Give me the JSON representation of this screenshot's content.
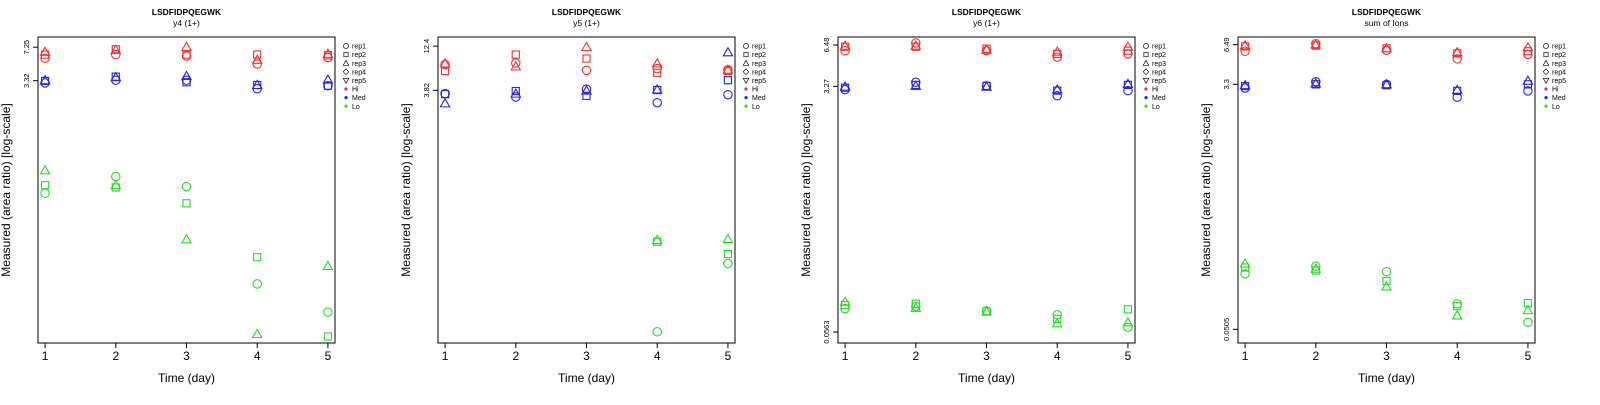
{
  "colors": {
    "Hi": "#ff2a2a",
    "Med": "#2424f0",
    "Lo": "#22dd22",
    "axis": "#000000"
  },
  "legend": {
    "entries": [
      {
        "label": "rep1",
        "shape": "circle"
      },
      {
        "label": "rep2",
        "shape": "square"
      },
      {
        "label": "rep3",
        "shape": "triangle"
      },
      {
        "label": "rep4",
        "shape": "diamond"
      },
      {
        "label": "rep5",
        "shape": "triangle-down"
      },
      {
        "label": "Hi",
        "shape": "dot",
        "color": "Hi"
      },
      {
        "label": "Med",
        "shape": "dot",
        "color": "Med"
      },
      {
        "label": "Lo",
        "shape": "dot",
        "color": "Lo"
      }
    ]
  },
  "chart_data": [
    {
      "type": "scatter",
      "title": "LSDFIDPQEGWK",
      "subtitle": "y4 (1+)",
      "xlabel": "Time (day)",
      "ylabel": "Measured (area ratio) [log-scale]",
      "log_y": true,
      "x_ticks": [
        1,
        2,
        3,
        4,
        5
      ],
      "y_ticks": [
        {
          "value": 7.25,
          "label": "7.25"
        },
        {
          "value": 3.32,
          "label": "3.32"
        }
      ],
      "xlim": [
        0.9,
        5.1
      ],
      "ylim": [
        0.0073,
        9.2
      ],
      "series": [
        {
          "group": "Hi",
          "rep": "rep1",
          "x": [
            1,
            2,
            3,
            4,
            5
          ],
          "y": [
            5.6,
            6.1,
            5.9,
            4.9,
            5.7
          ]
        },
        {
          "group": "Hi",
          "rep": "rep2",
          "x": [
            1,
            2,
            3,
            4,
            5
          ],
          "y": [
            6.1,
            6.9,
            6.1,
            6.1,
            6.0
          ]
        },
        {
          "group": "Hi",
          "rep": "rep3",
          "x": [
            1,
            2,
            3,
            4,
            5
          ],
          "y": [
            6.5,
            6.8,
            7.3,
            5.4,
            6.2
          ]
        },
        {
          "group": "Med",
          "rep": "rep1",
          "x": [
            1,
            2,
            3,
            4,
            5
          ],
          "y": [
            3.15,
            3.35,
            3.35,
            2.75,
            2.95
          ]
        },
        {
          "group": "Med",
          "rep": "rep2",
          "x": [
            1,
            2,
            3,
            4,
            5
          ],
          "y": [
            3.3,
            3.65,
            3.2,
            3.0,
            2.95
          ]
        },
        {
          "group": "Med",
          "rep": "rep3",
          "x": [
            1,
            2,
            3,
            4,
            5
          ],
          "y": [
            3.35,
            3.6,
            3.7,
            3.0,
            3.4
          ]
        },
        {
          "group": "Lo",
          "rep": "rep1",
          "x": [
            1,
            2,
            3,
            4,
            5
          ],
          "y": [
            0.24,
            0.355,
            0.28,
            0.029,
            0.015
          ]
        },
        {
          "group": "Lo",
          "rep": "rep2",
          "x": [
            1,
            2,
            3,
            4,
            5
          ],
          "y": [
            0.29,
            0.275,
            0.19,
            0.054,
            0.0085
          ]
        },
        {
          "group": "Lo",
          "rep": "rep3",
          "x": [
            1,
            2,
            3,
            4,
            5
          ],
          "y": [
            0.41,
            0.29,
            0.082,
            0.009,
            0.044
          ]
        }
      ]
    },
    {
      "type": "scatter",
      "title": "LSDFIDPQEGWK",
      "subtitle": "y5 (1+)",
      "xlabel": "Time (day)",
      "ylabel": "Measured (area ratio) [log-scale]",
      "log_y": true,
      "x_ticks": [
        1,
        2,
        3,
        4,
        5
      ],
      "y_ticks": [
        {
          "value": 12.4,
          "label": "12.4"
        },
        {
          "value": 3.82,
          "label": "3.82"
        }
      ],
      "xlim": [
        0.9,
        5.1
      ],
      "ylim": [
        0.0046,
        15.8
      ],
      "series": [
        {
          "group": "Hi",
          "rep": "rep1",
          "x": [
            1,
            2,
            3,
            4,
            5
          ],
          "y": [
            7.6,
            7.9,
            6.5,
            6.8,
            6.6
          ]
        },
        {
          "group": "Hi",
          "rep": "rep2",
          "x": [
            1,
            2,
            3,
            4,
            5
          ],
          "y": [
            6.4,
            9.9,
            8.9,
            6.1,
            6.4
          ]
        },
        {
          "group": "Hi",
          "rep": "rep3",
          "x": [
            1,
            2,
            3,
            4,
            5
          ],
          "y": [
            7.8,
            7.2,
            12.1,
            7.8,
            6.6
          ]
        },
        {
          "group": "Med",
          "rep": "rep1",
          "x": [
            1,
            2,
            3,
            4,
            5
          ],
          "y": [
            3.5,
            3.2,
            3.95,
            2.75,
            3.4
          ]
        },
        {
          "group": "Med",
          "rep": "rep2",
          "x": [
            1,
            2,
            3,
            4,
            5
          ],
          "y": [
            3.45,
            3.75,
            3.3,
            3.85,
            5.0
          ]
        },
        {
          "group": "Med",
          "rep": "rep3",
          "x": [
            1,
            2,
            3,
            4,
            5
          ],
          "y": [
            2.7,
            3.5,
            3.8,
            3.9,
            10.5
          ]
        },
        {
          "group": "Lo",
          "rep": "rep1",
          "x": [
            1,
            2,
            3,
            4,
            5
          ],
          "y": [
            null,
            null,
            null,
            0.0062,
            0.038
          ]
        },
        {
          "group": "Lo",
          "rep": "rep2",
          "x": [
            1,
            2,
            3,
            4,
            5
          ],
          "y": [
            null,
            null,
            null,
            0.068,
            0.049
          ]
        },
        {
          "group": "Lo",
          "rep": "rep3",
          "x": [
            1,
            2,
            3,
            4,
            5
          ],
          "y": [
            null,
            null,
            null,
            0.071,
            0.073
          ]
        }
      ]
    },
    {
      "type": "scatter",
      "title": "LSDFIDPQEGWK",
      "subtitle": "y6 (1+)",
      "xlabel": "Time (day)",
      "ylabel": "Measured (area ratio) [log-scale]",
      "log_y": true,
      "x_ticks": [
        1,
        2,
        3,
        4,
        5
      ],
      "y_ticks": [
        {
          "value": 6.48,
          "label": "6.48"
        },
        {
          "value": 3.27,
          "label": "3.27"
        },
        {
          "value": 0.0563,
          "label": "0.0563"
        }
      ],
      "xlim": [
        0.9,
        5.1
      ],
      "ylim": [
        0.047,
        7.4
      ],
      "series": [
        {
          "group": "Hi",
          "rep": "rep1",
          "x": [
            1,
            2,
            3,
            4,
            5
          ],
          "y": [
            5.9,
            6.7,
            5.9,
            5.3,
            5.6
          ]
        },
        {
          "group": "Hi",
          "rep": "rep2",
          "x": [
            1,
            2,
            3,
            4,
            5
          ],
          "y": [
            6.3,
            6.3,
            6.1,
            5.6,
            5.9
          ]
        },
        {
          "group": "Hi",
          "rep": "rep3",
          "x": [
            1,
            2,
            3,
            4,
            5
          ],
          "y": [
            6.4,
            6.4,
            6.0,
            5.8,
            6.3
          ]
        },
        {
          "group": "Med",
          "rep": "rep1",
          "x": [
            1,
            2,
            3,
            4,
            5
          ],
          "y": [
            3.1,
            3.5,
            3.3,
            2.8,
            3.05
          ]
        },
        {
          "group": "Med",
          "rep": "rep2",
          "x": [
            1,
            2,
            3,
            4,
            5
          ],
          "y": [
            3.2,
            3.35,
            3.3,
            3.05,
            3.35
          ]
        },
        {
          "group": "Med",
          "rep": "rep3",
          "x": [
            1,
            2,
            3,
            4,
            5
          ],
          "y": [
            3.25,
            3.3,
            3.25,
            3.1,
            3.4
          ]
        },
        {
          "group": "Lo",
          "rep": "rep1",
          "x": [
            1,
            2,
            3,
            4,
            5
          ],
          "y": [
            0.083,
            0.086,
            0.08,
            0.075,
            0.061
          ]
        },
        {
          "group": "Lo",
          "rep": "rep2",
          "x": [
            1,
            2,
            3,
            4,
            5
          ],
          "y": [
            0.088,
            0.09,
            0.079,
            0.07,
            0.082
          ]
        },
        {
          "group": "Lo",
          "rep": "rep3",
          "x": [
            1,
            2,
            3,
            4,
            5
          ],
          "y": [
            0.093,
            0.084,
            0.079,
            0.065,
            0.066
          ]
        }
      ]
    },
    {
      "type": "scatter",
      "title": "LSDFIDPQEGWK",
      "subtitle": "sum of Ions",
      "xlabel": "Time (day)",
      "ylabel": "Measured (area ratio) [log-scale]",
      "log_y": true,
      "x_ticks": [
        1,
        2,
        3,
        4,
        5
      ],
      "y_ticks": [
        {
          "value": 6.49,
          "label": "6.49"
        },
        {
          "value": 3.3,
          "label": "3.3"
        },
        {
          "value": 0.0505,
          "label": "0.0505"
        }
      ],
      "xlim": [
        0.9,
        5.1
      ],
      "ylim": [
        0.04,
        7.4
      ],
      "series": [
        {
          "group": "Hi",
          "rep": "rep1",
          "x": [
            1,
            2,
            3,
            4,
            5
          ],
          "y": [
            5.8,
            6.6,
            5.9,
            5.1,
            5.5
          ]
        },
        {
          "group": "Hi",
          "rep": "rep2",
          "x": [
            1,
            2,
            3,
            4,
            5
          ],
          "y": [
            6.3,
            6.4,
            6.1,
            5.6,
            5.8
          ]
        },
        {
          "group": "Hi",
          "rep": "rep3",
          "x": [
            1,
            2,
            3,
            4,
            5
          ],
          "y": [
            6.4,
            6.5,
            6.1,
            5.7,
            6.2
          ]
        },
        {
          "group": "Med",
          "rep": "rep1",
          "x": [
            1,
            2,
            3,
            4,
            5
          ],
          "y": [
            3.1,
            3.45,
            3.3,
            2.65,
            2.95
          ]
        },
        {
          "group": "Med",
          "rep": "rep2",
          "x": [
            1,
            2,
            3,
            4,
            5
          ],
          "y": [
            3.2,
            3.3,
            3.25,
            2.95,
            3.3
          ]
        },
        {
          "group": "Med",
          "rep": "rep3",
          "x": [
            1,
            2,
            3,
            4,
            5
          ],
          "y": [
            3.25,
            3.35,
            3.3,
            3.0,
            3.5
          ]
        },
        {
          "group": "Lo",
          "rep": "rep1",
          "x": [
            1,
            2,
            3,
            4,
            5
          ],
          "y": [
            0.13,
            0.148,
            0.135,
            0.078,
            0.057
          ]
        },
        {
          "group": "Lo",
          "rep": "rep2",
          "x": [
            1,
            2,
            3,
            4,
            5
          ],
          "y": [
            0.145,
            0.138,
            0.115,
            0.075,
            0.079
          ]
        },
        {
          "group": "Lo",
          "rep": "rep3",
          "x": [
            1,
            2,
            3,
            4,
            5
          ],
          "y": [
            0.155,
            0.142,
            0.105,
            0.064,
            0.07
          ]
        }
      ]
    }
  ]
}
